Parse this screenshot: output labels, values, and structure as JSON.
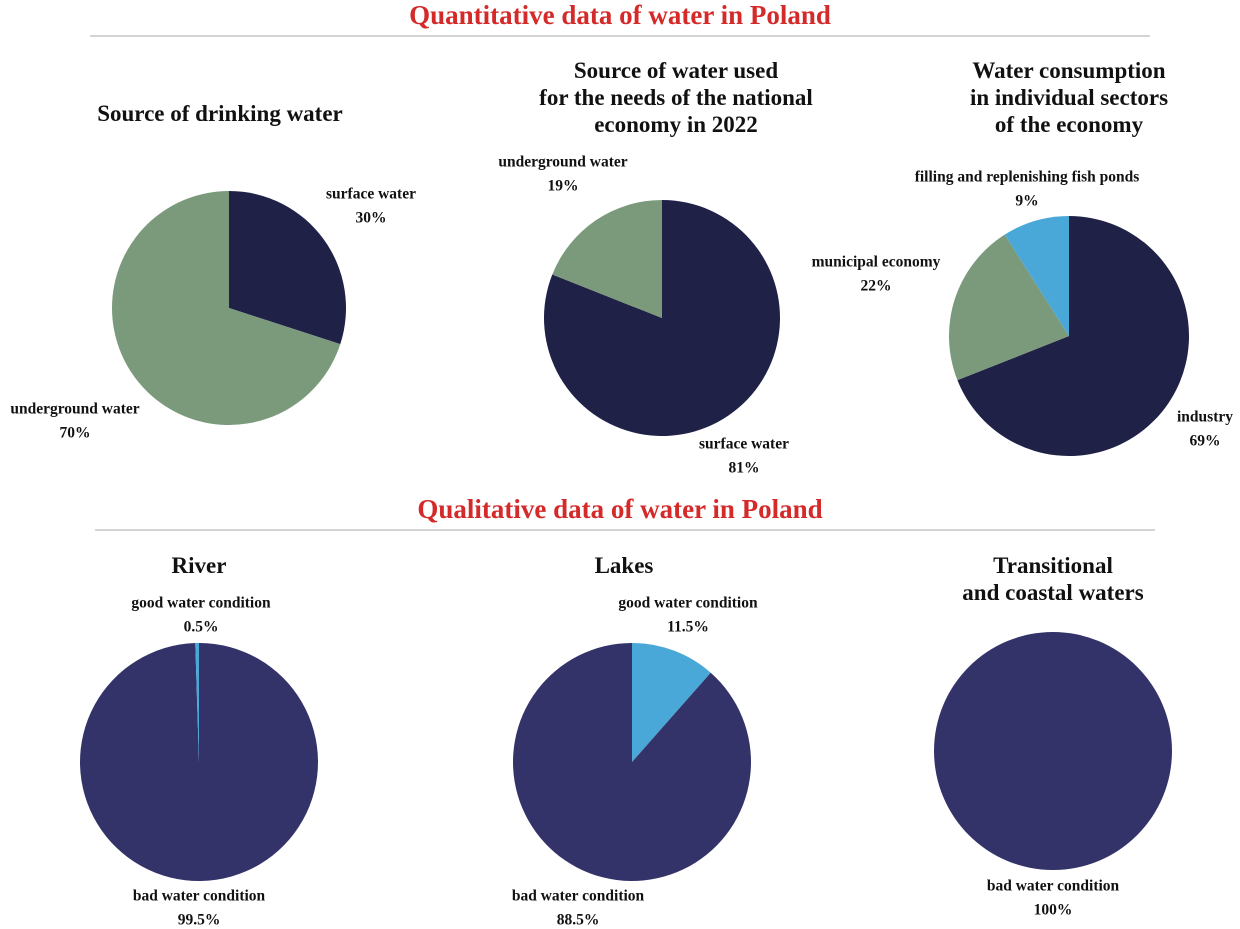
{
  "headings": [
    "Quantitative data of water in Poland",
    "Qualitative data of water in Poland"
  ],
  "chart_data": [
    {
      "type": "pie",
      "title": "Source of drinking water",
      "categories": [
        "surface water",
        "underground water"
      ],
      "values": [
        30,
        70
      ],
      "value_labels": [
        "30%",
        "70%"
      ],
      "colors": [
        "#1f2147",
        "#7b9a7b"
      ]
    },
    {
      "type": "pie",
      "title": "Source of water used\nfor the needs of the national\neconomy in 2022",
      "categories": [
        "surface water",
        "underground water"
      ],
      "values": [
        81,
        19
      ],
      "value_labels": [
        "81%",
        "19%"
      ],
      "colors": [
        "#1f2147",
        "#7b9a7b"
      ]
    },
    {
      "type": "pie",
      "title": "Water consumption\nin individual sectors\nof the economy",
      "categories": [
        "industry",
        "municipal economy",
        "filling and replenishing fish ponds"
      ],
      "values": [
        69,
        22,
        9
      ],
      "value_labels": [
        "69%",
        "22%",
        "9%"
      ],
      "colors": [
        "#1f2147",
        "#7b9a7b",
        "#4aa8d8"
      ]
    },
    {
      "type": "pie",
      "title": "River",
      "categories": [
        "bad water condition",
        "good water condition"
      ],
      "values": [
        99.5,
        0.5
      ],
      "value_labels": [
        "99.5%",
        "0.5%"
      ],
      "colors": [
        "#33336a",
        "#4aa8d8"
      ]
    },
    {
      "type": "pie",
      "title": "Lakes",
      "categories": [
        "good water condition",
        "bad water condition"
      ],
      "values": [
        11.5,
        88.5
      ],
      "value_labels": [
        "11.5%",
        "88.5%"
      ],
      "colors": [
        "#4aa8d8",
        "#33336a"
      ]
    },
    {
      "type": "pie",
      "title": "Transitional\nand coastal waters",
      "categories": [
        "bad water condition"
      ],
      "values": [
        100
      ],
      "value_labels": [
        "100%"
      ],
      "colors": [
        "#33336a"
      ]
    }
  ]
}
